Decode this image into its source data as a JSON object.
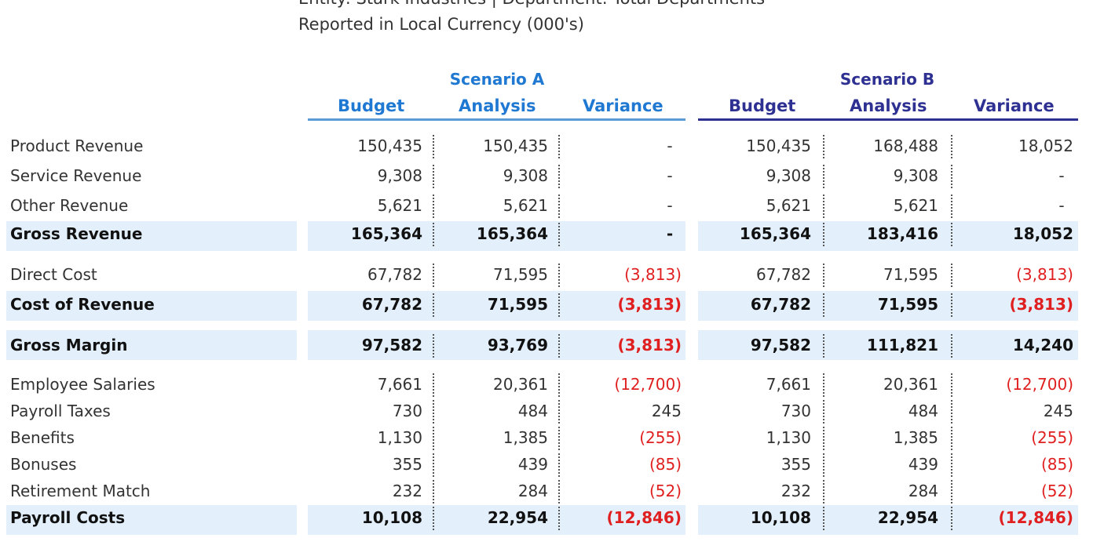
{
  "header": {
    "entity_line": "Entity: Stark Industries | Department: Total Departments",
    "currency_line": "Reported in Local Currency (000's)"
  },
  "scenarios": [
    {
      "title": "Scenario A",
      "columns": [
        "Budget",
        "Analysis",
        "Variance"
      ],
      "color": "#1f78d1"
    },
    {
      "title": "Scenario B",
      "columns": [
        "Budget",
        "Analysis",
        "Variance"
      ],
      "color": "#2e3192"
    }
  ],
  "colors": {
    "negative": "#e02020",
    "band": "#e3f0fc",
    "scenario_a_line": "#5b9bd5",
    "scenario_b_line": "#2e3192"
  },
  "rows": [
    {
      "label": "Product Revenue",
      "bold": false,
      "a": [
        "150,435",
        "150,435",
        "-"
      ],
      "b": [
        "150,435",
        "168,488",
        "18,052"
      ]
    },
    {
      "label": "Service Revenue",
      "bold": false,
      "a": [
        "9,308",
        "9,308",
        "-"
      ],
      "b": [
        "9,308",
        "9,308",
        "-"
      ]
    },
    {
      "label": "Other Revenue",
      "bold": false,
      "a": [
        "5,621",
        "5,621",
        "-"
      ],
      "b": [
        "5,621",
        "5,621",
        "-"
      ]
    },
    {
      "label": "Gross Revenue",
      "bold": true,
      "a": [
        "165,364",
        "165,364",
        "-"
      ],
      "b": [
        "165,364",
        "183,416",
        "18,052"
      ]
    },
    {
      "label": "Direct Cost",
      "bold": false,
      "a": [
        "67,782",
        "71,595",
        "(3,813)"
      ],
      "b": [
        "67,782",
        "71,595",
        "(3,813)"
      ]
    },
    {
      "label": "Cost of Revenue",
      "bold": true,
      "a": [
        "67,782",
        "71,595",
        "(3,813)"
      ],
      "b": [
        "67,782",
        "71,595",
        "(3,813)"
      ]
    },
    {
      "label": "Gross Margin",
      "bold": true,
      "a": [
        "97,582",
        "93,769",
        "(3,813)"
      ],
      "b": [
        "97,582",
        "111,821",
        "14,240"
      ]
    },
    {
      "label": "Employee Salaries",
      "bold": false,
      "a": [
        "7,661",
        "20,361",
        "(12,700)"
      ],
      "b": [
        "7,661",
        "20,361",
        "(12,700)"
      ]
    },
    {
      "label": "Payroll Taxes",
      "bold": false,
      "a": [
        "730",
        "484",
        "245"
      ],
      "b": [
        "730",
        "484",
        "245"
      ]
    },
    {
      "label": "Benefits",
      "bold": false,
      "a": [
        "1,130",
        "1,385",
        "(255)"
      ],
      "b": [
        "1,130",
        "1,385",
        "(255)"
      ]
    },
    {
      "label": "Bonuses",
      "bold": false,
      "a": [
        "355",
        "439",
        "(85)"
      ],
      "b": [
        "355",
        "439",
        "(85)"
      ]
    },
    {
      "label": "Retirement Match",
      "bold": false,
      "a": [
        "232",
        "284",
        "(52)"
      ],
      "b": [
        "232",
        "284",
        "(52)"
      ]
    },
    {
      "label": "Payroll Costs",
      "bold": true,
      "a": [
        "10,108",
        "22,954",
        "(12,846)"
      ],
      "b": [
        "10,108",
        "22,954",
        "(12,846)"
      ]
    }
  ]
}
